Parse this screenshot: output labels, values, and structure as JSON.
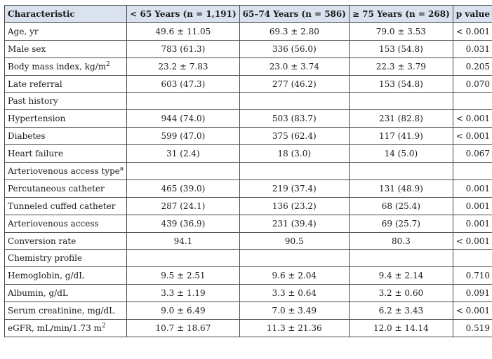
{
  "table": {
    "headers": [
      "Characteristic",
      "< 65 Years (n = 1,191)",
      "65–74 Years (n = 586)",
      "≥ 75 Years (n = 268)",
      "p value"
    ],
    "rows": [
      {
        "label": "Age, yr",
        "sup": "",
        "v1": "49.6 ± 11.05",
        "v2": "69.3 ± 2.80",
        "v3": "79.0 ± 3.53",
        "p": "< 0.001"
      },
      {
        "label": "Male sex",
        "sup": "",
        "v1": "783 (61.3)",
        "v2": "336 (56.0)",
        "v3": "153 (54.8)",
        "p": "0.031"
      },
      {
        "label": "Body mass index, kg/m",
        "sup": "2",
        "v1": "23.2 ± 7.83",
        "v2": "23.0 ± 3.74",
        "v3": "22.3 ± 3.79",
        "p": "0.205"
      },
      {
        "label": "Late referral",
        "sup": "",
        "v1": "603 (47.3)",
        "v2": "277 (46.2)",
        "v3": "153 (54.8)",
        "p": "0.070"
      },
      {
        "label": "Past history",
        "sup": "",
        "v1": "",
        "v2": "",
        "v3": "",
        "p": ""
      },
      {
        "label": "Hypertension",
        "sup": "",
        "v1": "944 (74.0)",
        "v2": "503 (83.7)",
        "v3": "231 (82.8)",
        "p": "< 0.001"
      },
      {
        "label": "Diabetes",
        "sup": "",
        "v1": "599 (47.0)",
        "v2": "375 (62.4)",
        "v3": "117 (41.9)",
        "p": "< 0.001"
      },
      {
        "label": "Heart failure",
        "sup": "",
        "v1": "31 (2.4)",
        "v2": "18 (3.0)",
        "v3": "14 (5.0)",
        "p": "0.067"
      },
      {
        "label": "Arteriovenous access type",
        "sup": "a",
        "v1": "",
        "v2": "",
        "v3": "",
        "p": ""
      },
      {
        "label": "Percutaneous catheter",
        "sup": "",
        "v1": "465 (39.0)",
        "v2": "219 (37.4)",
        "v3": "131 (48.9)",
        "p": "0.001"
      },
      {
        "label": "Tunneled cuffed catheter",
        "sup": "",
        "v1": "287 (24.1)",
        "v2": "136 (23.2)",
        "v3": "68 (25.4)",
        "p": "0.001"
      },
      {
        "label": "Arteriovenous access",
        "sup": "",
        "v1": "439 (36.9)",
        "v2": "231 (39.4)",
        "v3": "69 (25.7)",
        "p": "0.001"
      },
      {
        "label": "Conversion rate",
        "sup": "",
        "v1": "94.1",
        "v2": "90.5",
        "v3": "80.3",
        "p": "< 0.001"
      },
      {
        "label": "Chemistry profile",
        "sup": "",
        "v1": "",
        "v2": "",
        "v3": "",
        "p": ""
      },
      {
        "label": "Hemoglobin, g/dL",
        "sup": "",
        "v1": "9.5 ± 2.51",
        "v2": "9.6 ± 2.04",
        "v3": "9.4 ± 2.14",
        "p": "0.710"
      },
      {
        "label": "Albumin, g/dL",
        "sup": "",
        "v1": "3.3 ± 1.19",
        "v2": "3.3 ± 0.64",
        "v3": "3.2 ± 0.60",
        "p": "0.091"
      },
      {
        "label": "Serum creatinine, mg/dL",
        "sup": "",
        "v1": "9.0 ± 6.49",
        "v2": "7.0 ± 3.49",
        "v3": "6.2 ± 3.43",
        "p": "< 0.001"
      },
      {
        "label": "eGFR, mL/min/1.73 m",
        "sup": "2",
        "v1": "10.7 ± 18.67",
        "v2": "11.3 ± 21.36",
        "v3": "12.0 ± 14.14",
        "p": "0.519"
      }
    ]
  }
}
